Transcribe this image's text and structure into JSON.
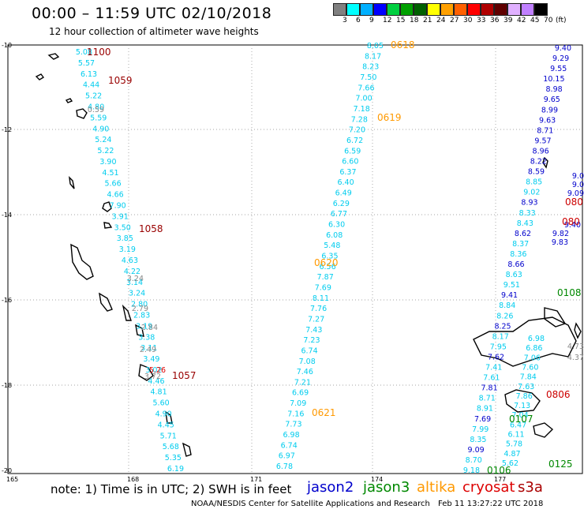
{
  "header": {
    "title": "00:00 – 11:59 UTC 02/10/2018",
    "subtitle": "12 hour collection of altimeter wave heights"
  },
  "colorbar": {
    "colors": [
      "#808080",
      "#00ffff",
      "#00b0ff",
      "#0000ff",
      "#00d040",
      "#00a000",
      "#006000",
      "#ffff00",
      "#ffa000",
      "#ff6000",
      "#ff0000",
      "#b00000",
      "#600000",
      "#e0b0ff",
      "#c080ff",
      "#000000"
    ],
    "labels": [
      "3",
      "6",
      "9",
      "12",
      "15",
      "18",
      "21",
      "24",
      "27",
      "30",
      "33",
      "36",
      "39",
      "42",
      "45",
      "70",
      "(ft)"
    ]
  },
  "map": {
    "lat_labels": [
      "-10",
      "-12",
      "-14",
      "-16",
      "-18",
      "-20"
    ],
    "lon_labels": [
      "165",
      "168",
      "171",
      "174",
      "177"
    ],
    "satellite_colors": {
      "jason2": "#0000cc",
      "jason3": "#008800",
      "altika": "#ff9900",
      "cryosat": "#dd0000",
      "s3a": "#aa0000",
      "cyan": "#00ccee"
    },
    "track1": {
      "color": "#00ccee",
      "values": [
        "5.08",
        "5.57",
        "6.13",
        "4.44",
        "5.22",
        "4.80",
        "5.59",
        "4.90",
        "5.24",
        "5.22",
        "3.90",
        "4.51",
        "5.66",
        "4.66",
        "7.90",
        "3.91",
        "3.50",
        "3.85",
        "3.19",
        "4.63",
        "4.22",
        "3.14",
        "3.24",
        "2.80",
        "2.83",
        "3.19",
        "3.38",
        "3.11",
        "3.49",
        "3.02",
        "4.46",
        "4.81",
        "5.60",
        "4.90",
        "4.45",
        "5.71",
        "5.68",
        "5.35",
        "6.19"
      ]
    },
    "track2": {
      "color": "#00ccee",
      "values": [
        "8.05",
        "8.17",
        "8.23",
        "7.50",
        "7.66",
        "7.00",
        "7.18",
        "7.28",
        "7.20",
        "6.72",
        "6.59",
        "6.60",
        "6.37",
        "6.40",
        "6.49",
        "6.29",
        "6.77",
        "6.30",
        "6.08",
        "5.48",
        "6.35",
        "6.56",
        "7.87",
        "7.69",
        "8.11",
        "7.76",
        "7.27",
        "7.43",
        "7.23",
        "6.74",
        "7.08",
        "7.46",
        "7.21",
        "6.69",
        "7.09",
        "7.16",
        "7.73",
        "6.98",
        "6.74",
        "6.97",
        "6.78"
      ]
    },
    "track3": {
      "values": [
        "9.40",
        "9.29",
        "9.55",
        "10.15",
        "8.98",
        "9.65",
        "8.99",
        "9.63",
        "8.71",
        "9.57",
        "8.96",
        "8.22",
        "8.59",
        "8.85",
        "9.02",
        "8.93",
        "8.33",
        "8.43",
        "8.62",
        "8.37",
        "8.36",
        "8.66",
        "8.63",
        "9.51",
        "9.41",
        "8.84",
        "8.26",
        "8.25",
        "8.17",
        "7.95",
        "7.62",
        "7.41",
        "7.61",
        "7.81",
        "8.71",
        "8.91",
        "7.69",
        "7.99",
        "8.35",
        "9.09",
        "8.70",
        "9.18"
      ]
    },
    "track4": {
      "values": [
        "6.98",
        "6.86",
        "7.06",
        "7.60",
        "7.84",
        "7.63",
        "7.86",
        "7.13",
        "7.04",
        "6.47",
        "6.11",
        "5.78",
        "4.87",
        "5.62"
      ]
    },
    "side_values": [
      "9.0",
      "9.0",
      "9.09",
      "9.40",
      "9.82",
      "9.83",
      "4.73",
      "4.37"
    ],
    "gray_values": [
      "0.59",
      "3.24",
      "2.79",
      "2.84",
      "2.49",
      "3.72",
      "5.26"
    ],
    "time_labels": [
      {
        "text": "1100",
        "color": "#990000"
      },
      {
        "text": "1059",
        "color": "#990000"
      },
      {
        "text": "1058",
        "color": "#990000"
      },
      {
        "text": "1057",
        "color": "#990000"
      },
      {
        "text": "0618",
        "color": "#ff9900"
      },
      {
        "text": "0619",
        "color": "#ff9900"
      },
      {
        "text": "0620",
        "color": "#ff9900"
      },
      {
        "text": "0621",
        "color": "#ff9900"
      },
      {
        "text": "0108",
        "color": "#008800"
      },
      {
        "text": "0107",
        "color": "#008800"
      },
      {
        "text": "0106",
        "color": "#008800"
      },
      {
        "text": "0125",
        "color": "#008800"
      },
      {
        "text": "0806",
        "color": "#cc0000"
      },
      {
        "text": "080",
        "color": "#cc0000"
      },
      {
        "text": "080",
        "color": "#cc0000"
      }
    ]
  },
  "footer": {
    "note": "note: 1) Time is in UTC; 2) SWH is in feet",
    "satellites": [
      {
        "name": "jason2",
        "color": "#0000cc"
      },
      {
        "name": "jason3",
        "color": "#008800"
      },
      {
        "name": "altika",
        "color": "#ff9900"
      },
      {
        "name": "cryosat",
        "color": "#dd0000"
      },
      {
        "name": "s3a",
        "color": "#aa0000"
      }
    ],
    "credit": "NOAA/NESDIS Center for Satellite Applications and Research",
    "stamp": "Feb 11 13:27:22 UTC 2018"
  }
}
